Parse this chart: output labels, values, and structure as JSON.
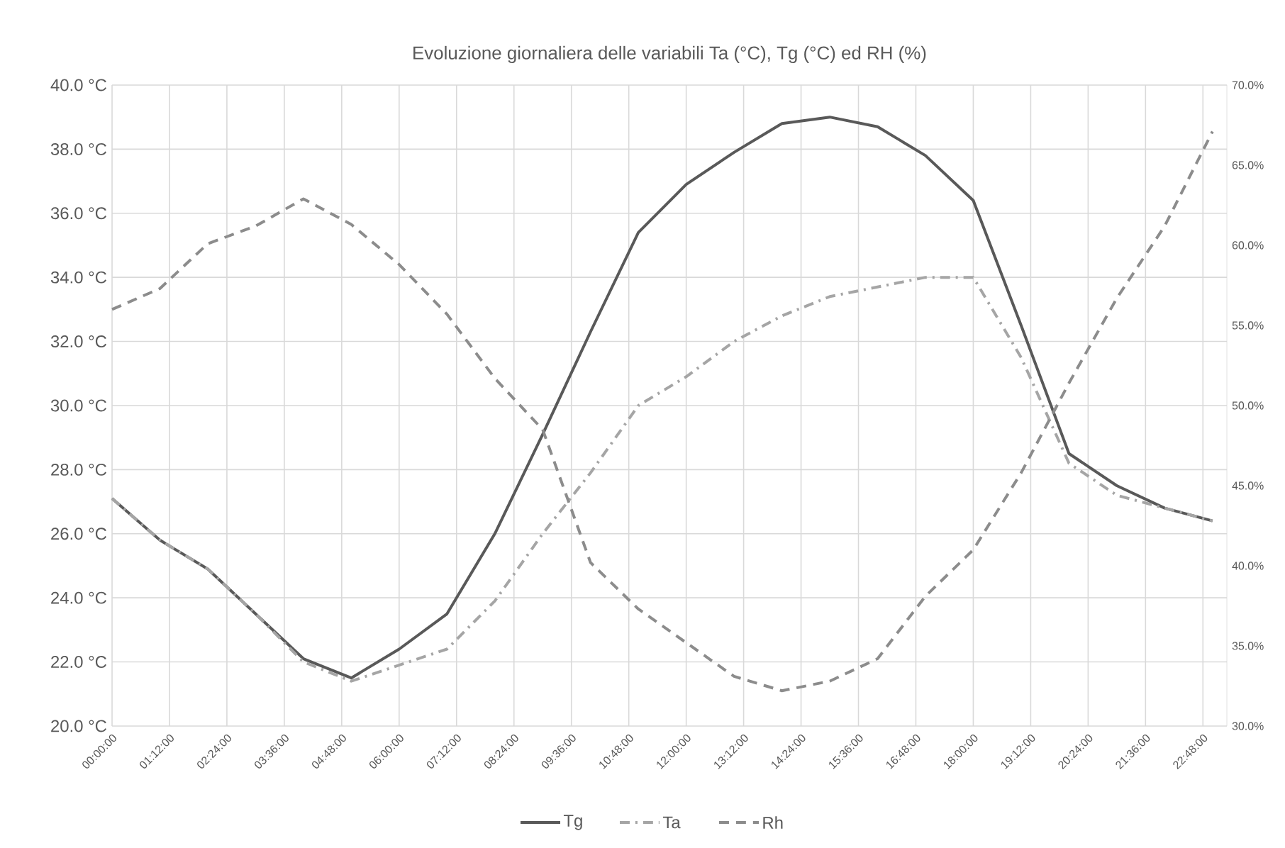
{
  "chart_data": {
    "type": "line",
    "title": "Evoluzione giornaliera delle variabili Ta (°C), Tg (°C) ed RH (%)",
    "x": [
      0,
      1,
      2,
      3,
      4,
      5,
      6,
      7,
      8,
      9,
      10,
      11,
      12,
      13,
      14,
      15,
      16,
      17,
      18,
      19,
      20,
      21,
      22,
      23
    ],
    "series": [
      {
        "name": "Tg",
        "color": "#595959",
        "line_style": "solid",
        "values": [
          27.1,
          25.8,
          24.9,
          23.5,
          22.1,
          21.5,
          22.4,
          23.5,
          26.0,
          29.1,
          32.3,
          35.4,
          36.9,
          37.9,
          38.8,
          39.0,
          38.7,
          37.8,
          36.4,
          32.5,
          28.5,
          27.5,
          26.8,
          26.4
        ]
      },
      {
        "name": "Ta",
        "color": "#a5a5a5",
        "line_style": "dashdot",
        "values": [
          27.1,
          25.8,
          24.9,
          23.5,
          22.0,
          21.4,
          21.9,
          22.4,
          23.9,
          26.0,
          27.9,
          30.0,
          30.9,
          32.0,
          32.8,
          33.4,
          33.7,
          34.0,
          34.0,
          31.5,
          28.2,
          27.2,
          26.8,
          26.4
        ]
      },
      {
        "name": "Rh",
        "color": "#8c8c8c",
        "line_style": "dashed",
        "axis": "y2",
        "values": [
          56.0,
          57.3,
          60.1,
          61.2,
          62.9,
          61.3,
          58.8,
          55.7,
          51.7,
          48.5,
          40.2,
          37.3,
          35.2,
          33.1,
          32.2,
          32.8,
          34.2,
          38.1,
          41.0,
          45.8,
          51.4,
          56.7,
          61.2,
          67.1
        ]
      }
    ],
    "xlim": [
      0,
      23.3
    ],
    "xticks": [
      {
        "value": 0,
        "label": "00:00:00"
      },
      {
        "value": 1.2,
        "label": "01:12:00"
      },
      {
        "value": 2.4,
        "label": "02:24:00"
      },
      {
        "value": 3.6,
        "label": "03:36:00"
      },
      {
        "value": 4.8,
        "label": "04:48:00"
      },
      {
        "value": 6.0,
        "label": "06:00:00"
      },
      {
        "value": 7.2,
        "label": "07:12:00"
      },
      {
        "value": 8.4,
        "label": "08:24:00"
      },
      {
        "value": 9.6,
        "label": "09:36:00"
      },
      {
        "value": 10.8,
        "label": "10:48:00"
      },
      {
        "value": 12.0,
        "label": "12:00:00"
      },
      {
        "value": 13.2,
        "label": "13:12:00"
      },
      {
        "value": 14.4,
        "label": "14:24:00"
      },
      {
        "value": 15.6,
        "label": "15:36:00"
      },
      {
        "value": 16.8,
        "label": "16:48:00"
      },
      {
        "value": 18.0,
        "label": "18:00:00"
      },
      {
        "value": 19.2,
        "label": "19:12:00"
      },
      {
        "value": 20.4,
        "label": "20:24:00"
      },
      {
        "value": 21.6,
        "label": "21:36:00"
      },
      {
        "value": 22.8,
        "label": "22:48:00"
      }
    ],
    "ylim": [
      20,
      40
    ],
    "yticks": [
      {
        "value": 20,
        "label": "20.0 °C"
      },
      {
        "value": 22,
        "label": "22.0 °C"
      },
      {
        "value": 24,
        "label": "24.0 °C"
      },
      {
        "value": 26,
        "label": "26.0 °C"
      },
      {
        "value": 28,
        "label": "28.0 °C"
      },
      {
        "value": 30,
        "label": "30.0 °C"
      },
      {
        "value": 32,
        "label": "32.0 °C"
      },
      {
        "value": 34,
        "label": "34.0 °C"
      },
      {
        "value": 36,
        "label": "36.0 °C"
      },
      {
        "value": 38,
        "label": "38.0 °C"
      },
      {
        "value": 40,
        "label": "40.0 °C"
      }
    ],
    "y2lim": [
      30,
      70
    ],
    "y2ticks": [
      {
        "value": 30,
        "label": "30.0%"
      },
      {
        "value": 35,
        "label": "35.0%"
      },
      {
        "value": 40,
        "label": "40.0%"
      },
      {
        "value": 45,
        "label": "45.0%"
      },
      {
        "value": 50,
        "label": "50.0%"
      },
      {
        "value": 55,
        "label": "55.0%"
      },
      {
        "value": 60,
        "label": "60.0%"
      },
      {
        "value": 65,
        "label": "65.0%"
      },
      {
        "value": 70,
        "label": "70.0%"
      }
    ],
    "grid": true,
    "legend": "bottom",
    "marker": "none"
  }
}
